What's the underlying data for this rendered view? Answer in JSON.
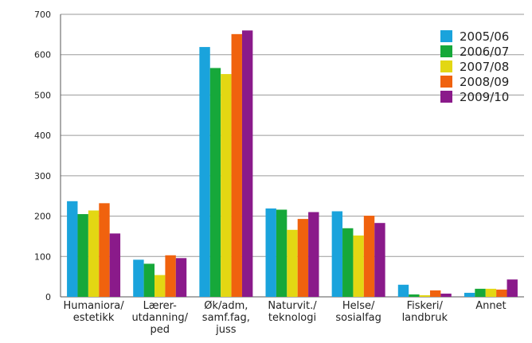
{
  "chart_data": {
    "type": "bar",
    "title": "",
    "xlabel": "",
    "ylabel": "",
    "ylim": [
      0,
      700
    ],
    "yticks": [
      0,
      100,
      200,
      300,
      400,
      500,
      600,
      700
    ],
    "grid": true,
    "legend": "top-right",
    "categories": [
      [
        "Humaniora/",
        "estetikk"
      ],
      [
        "Lærer-",
        "utdanning/",
        "ped"
      ],
      [
        "Øk/adm,",
        "samf.fag,",
        "juss"
      ],
      [
        "Naturvit./",
        "teknologi"
      ],
      [
        "Helse/",
        "sosialfag"
      ],
      [
        "Fiskeri/",
        "landbruk"
      ],
      [
        "Annet"
      ]
    ],
    "series": [
      {
        "name": "2005/06",
        "color": "#1aa3dc",
        "values": [
          237,
          92,
          619,
          219,
          212,
          30,
          10
        ]
      },
      {
        "name": "2006/07",
        "color": "#16a83a",
        "values": [
          205,
          82,
          567,
          216,
          170,
          6,
          20
        ]
      },
      {
        "name": "2007/08",
        "color": "#e3d713",
        "values": [
          214,
          54,
          552,
          166,
          152,
          4,
          20
        ]
      },
      {
        "name": "2008/09",
        "color": "#f0620e",
        "values": [
          232,
          103,
          651,
          193,
          201,
          16,
          18
        ]
      },
      {
        "name": "2009/10",
        "color": "#8a1a8a",
        "values": [
          157,
          96,
          660,
          210,
          183,
          8,
          43
        ]
      }
    ]
  }
}
